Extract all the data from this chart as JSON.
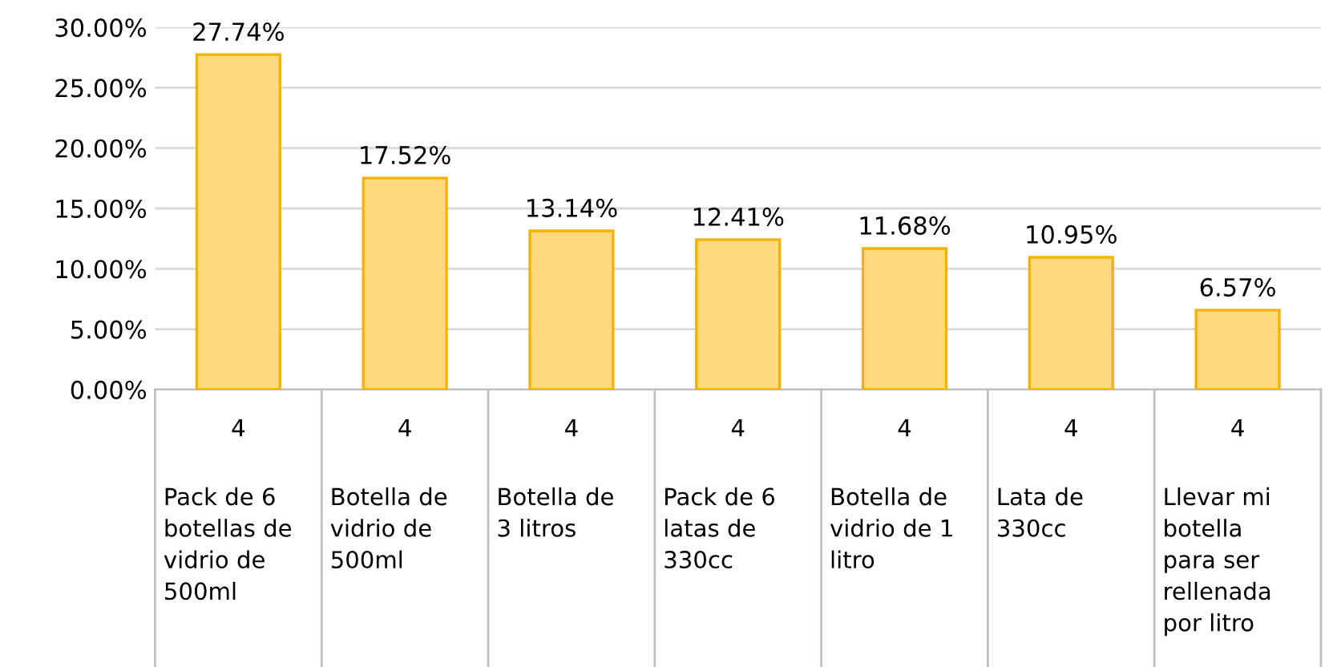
{
  "chart_data": {
    "type": "bar",
    "categories": [
      "4\n\nPack de 6\nbotellas de\nvidrio de\n500ml",
      "4\n\nBotella de\nvidrio de\n500ml",
      "4\n\nBotella de\n3 litros",
      "4\n\nPack de 6\nlatas de\n330cc",
      "4\n\nBotella de\nvidrio de 1\nlitro",
      "4\n\nLata de\n330cc",
      "4\n\nLlevar mi\nbotella\npara ser\nrellenada\npor litro"
    ],
    "values": [
      27.74,
      17.52,
      13.14,
      12.41,
      11.68,
      10.95,
      6.57
    ],
    "value_labels": [
      "27.74%",
      "17.52%",
      "13.14%",
      "12.41%",
      "11.68%",
      "10.95%",
      "6.57%"
    ],
    "color": "#ffd980",
    "ylim": [
      0,
      30
    ],
    "yticks": [
      {
        "value": 0,
        "label": "0.00%"
      },
      {
        "value": 5,
        "label": "5.00%"
      },
      {
        "value": 10,
        "label": "10.00%"
      },
      {
        "value": 15,
        "label": "15.00%"
      },
      {
        "value": 20,
        "label": "20.00%"
      },
      {
        "value": 25,
        "label": "25.00%"
      },
      {
        "value": 30,
        "label": "30.00%"
      }
    ],
    "grid": "y",
    "legend": false
  }
}
